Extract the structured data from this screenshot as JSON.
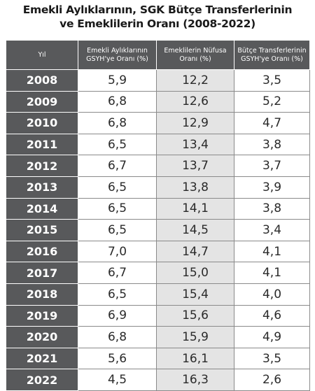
{
  "title_line1": "Emekli Aylıklarının, SGK Bütçe Transferlerinin",
  "title_line2": "ve Emeklilerin Oranı (2008-2022)",
  "headers": [
    "Yıl",
    "Emekli Aylıklarının GSYH'ye Oranı (%)",
    "Emeklilerin Nüfusa Oranı (%)",
    "Bütçe Transferlerinin GSYH'ye Oranı (%)"
  ],
  "chart_data": {
    "type": "table",
    "columns": [
      "Yıl",
      "Emekli Aylıklarının GSYH'ye Oranı (%)",
      "Emeklilerin Nüfusa Oranı (%)",
      "Bütçe Transferlerinin GSYH'ye Oranı (%)"
    ],
    "rows": [
      [
        "2008",
        "5,9",
        "12,2",
        "3,5"
      ],
      [
        "2009",
        "6,8",
        "12,6",
        "5,2"
      ],
      [
        "2010",
        "6,8",
        "12,9",
        "4,7"
      ],
      [
        "2011",
        "6,5",
        "13,4",
        "3,8"
      ],
      [
        "2012",
        "6,7",
        "13,7",
        "3,7"
      ],
      [
        "2013",
        "6,5",
        "13,8",
        "3,9"
      ],
      [
        "2014",
        "6,5",
        "14,1",
        "3,8"
      ],
      [
        "2015",
        "6,5",
        "14,5",
        "3,4"
      ],
      [
        "2016",
        "7,0",
        "14,7",
        "4,1"
      ],
      [
        "2017",
        "6,7",
        "15,0",
        "4,1"
      ],
      [
        "2018",
        "6,5",
        "15,4",
        "4,0"
      ],
      [
        "2019",
        "6,9",
        "15,6",
        "4,6"
      ],
      [
        "2020",
        "6,8",
        "15,9",
        "4,9"
      ],
      [
        "2021",
        "5,6",
        "16,1",
        "3,5"
      ],
      [
        "2022",
        "4,5",
        "16,3",
        "2,6"
      ]
    ]
  }
}
